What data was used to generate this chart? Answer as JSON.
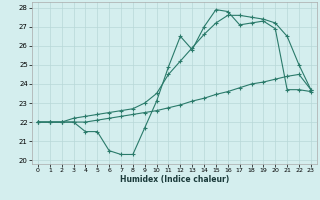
{
  "xlabel": "Humidex (Indice chaleur)",
  "bg_color": "#d4eeee",
  "grid_color": "#b8d8d8",
  "line_color": "#2a7a6a",
  "xlim_min": -0.5,
  "xlim_max": 23.5,
  "ylim_min": 19.8,
  "ylim_max": 28.3,
  "xticks": [
    0,
    1,
    2,
    3,
    4,
    5,
    6,
    7,
    8,
    9,
    10,
    11,
    12,
    13,
    14,
    15,
    16,
    17,
    18,
    19,
    20,
    21,
    22,
    23
  ],
  "yticks": [
    20,
    21,
    22,
    23,
    24,
    25,
    26,
    27,
    28
  ],
  "line1_x": [
    0,
    1,
    2,
    3,
    4,
    5,
    6,
    7,
    8,
    9,
    10,
    11,
    12,
    13,
    14,
    15,
    16,
    17,
    18,
    19,
    20,
    21,
    22,
    23
  ],
  "line1_y": [
    22,
    22,
    22,
    22,
    21.5,
    21.5,
    20.5,
    20.3,
    20.3,
    21.7,
    23.1,
    24.9,
    26.5,
    25.8,
    27.0,
    27.9,
    27.8,
    27.1,
    27.2,
    27.3,
    26.9,
    23.7,
    23.7,
    23.6
  ],
  "line2_x": [
    0,
    1,
    2,
    3,
    4,
    5,
    6,
    7,
    8,
    9,
    10,
    11,
    12,
    13,
    14,
    15,
    16,
    17,
    18,
    19,
    20,
    21,
    22,
    23
  ],
  "line2_y": [
    22,
    22,
    22,
    22.2,
    22.3,
    22.4,
    22.5,
    22.6,
    22.7,
    23.0,
    23.5,
    24.5,
    25.2,
    25.9,
    26.6,
    27.2,
    27.6,
    27.6,
    27.5,
    27.4,
    27.2,
    26.5,
    25.0,
    23.7
  ],
  "line3_x": [
    0,
    1,
    2,
    3,
    4,
    5,
    6,
    7,
    8,
    9,
    10,
    11,
    12,
    13,
    14,
    15,
    16,
    17,
    18,
    19,
    20,
    21,
    22,
    23
  ],
  "line3_y": [
    22,
    22,
    22,
    22,
    22.0,
    22.1,
    22.2,
    22.3,
    22.4,
    22.5,
    22.6,
    22.75,
    22.9,
    23.1,
    23.25,
    23.45,
    23.6,
    23.8,
    24.0,
    24.1,
    24.25,
    24.4,
    24.5,
    23.7
  ]
}
